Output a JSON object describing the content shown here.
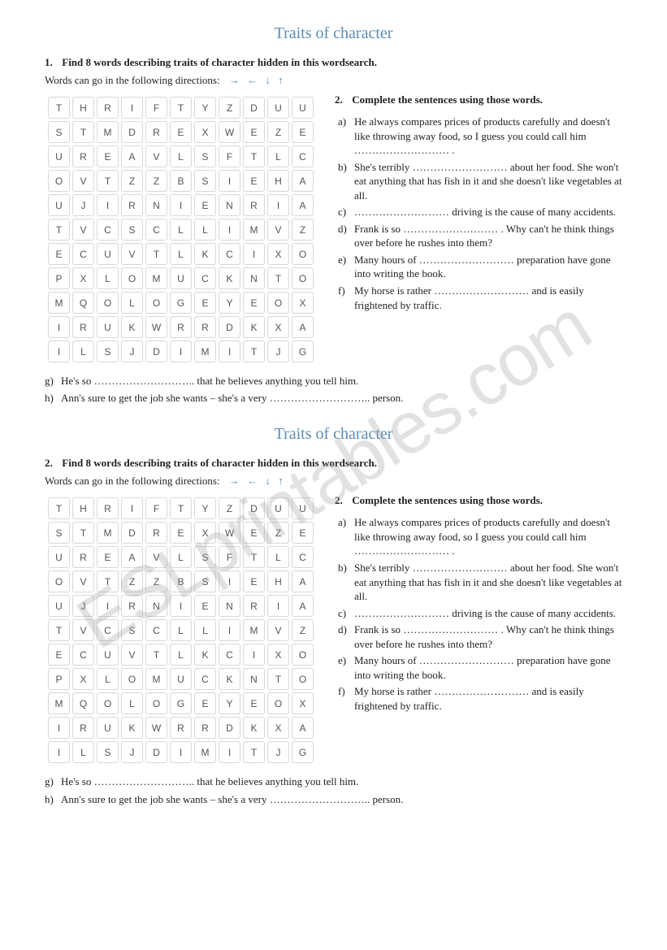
{
  "watermark": "ESLprintables.com",
  "title": "Traits of character",
  "colors": {
    "title": "#5b8db8",
    "arrows": "#5b8db8",
    "text": "#222222",
    "cell_border": "#d8d8d8",
    "cell_text": "#555555",
    "background": "#ffffff"
  },
  "block1": {
    "number": "1.",
    "instruction": "Find 8 words describing traits of character hidden in this wordsearch.",
    "directions_label": "Words can go in the following directions:",
    "arrows": "→ ← ↓ ↑"
  },
  "block2": {
    "number": "2.",
    "instruction": "Find 8 words describing traits of character hidden in this wordsearch.",
    "directions_label": "Words can go in the following directions:",
    "arrows": "→ ← ↓ ↑"
  },
  "grid": {
    "cols": 11,
    "rows": 11,
    "data": [
      [
        "T",
        "H",
        "R",
        "I",
        "F",
        "T",
        "Y",
        "Z",
        "D",
        "U",
        "U"
      ],
      [
        "S",
        "T",
        "M",
        "D",
        "R",
        "E",
        "X",
        "W",
        "E",
        "Z",
        "E"
      ],
      [
        "U",
        "R",
        "E",
        "A",
        "V",
        "L",
        "S",
        "F",
        "T",
        "L",
        "C"
      ],
      [
        "O",
        "V",
        "T",
        "Z",
        "Z",
        "B",
        "S",
        "I",
        "E",
        "H",
        "A"
      ],
      [
        "U",
        "J",
        "I",
        "R",
        "N",
        "I",
        "E",
        "N",
        "R",
        "I",
        "A"
      ],
      [
        "T",
        "V",
        "C",
        "S",
        "C",
        "L",
        "L",
        "I",
        "M",
        "V",
        "Z"
      ],
      [
        "E",
        "C",
        "U",
        "V",
        "T",
        "L",
        "K",
        "C",
        "I",
        "X",
        "O"
      ],
      [
        "P",
        "X",
        "L",
        "O",
        "M",
        "U",
        "C",
        "K",
        "N",
        "T",
        "O"
      ],
      [
        "M",
        "Q",
        "O",
        "L",
        "O",
        "G",
        "E",
        "Y",
        "E",
        "O",
        "X"
      ],
      [
        "I",
        "R",
        "U",
        "K",
        "W",
        "R",
        "R",
        "D",
        "K",
        "X",
        "A"
      ],
      [
        "I",
        "L",
        "S",
        "J",
        "D",
        "I",
        "M",
        "I",
        "T",
        "J",
        "G"
      ]
    ]
  },
  "exercise2": {
    "number": "2.",
    "heading": "Complete the sentences using those words.",
    "items": [
      {
        "letter": "a)",
        "text": "He always compares prices of products carefully and doesn't like throwing away food, so I guess you could call him ……………………… ."
      },
      {
        "letter": "b)",
        "text": "She's terribly ……………………… about her food. She won't eat anything that has fish in it and she doesn't like vegetables at all."
      },
      {
        "letter": "c)",
        "text": "……………………… driving is the cause of many accidents."
      },
      {
        "letter": "d)",
        "text": "Frank is so ……………………… . Why can't he think things over before he rushes into them?"
      },
      {
        "letter": "e)",
        "text": "Many hours of ……………………… preparation have gone into writing the book."
      },
      {
        "letter": "f)",
        "text": "My horse is rather ……………………… and is easily frightened by traffic."
      }
    ],
    "bottom_items": [
      {
        "letter": "g)",
        "text": "He's so ……………………….. that he believes anything you tell him."
      },
      {
        "letter": "h)",
        "text": "Ann's sure to get the job she wants – she's a very ……………………….. person."
      }
    ]
  }
}
